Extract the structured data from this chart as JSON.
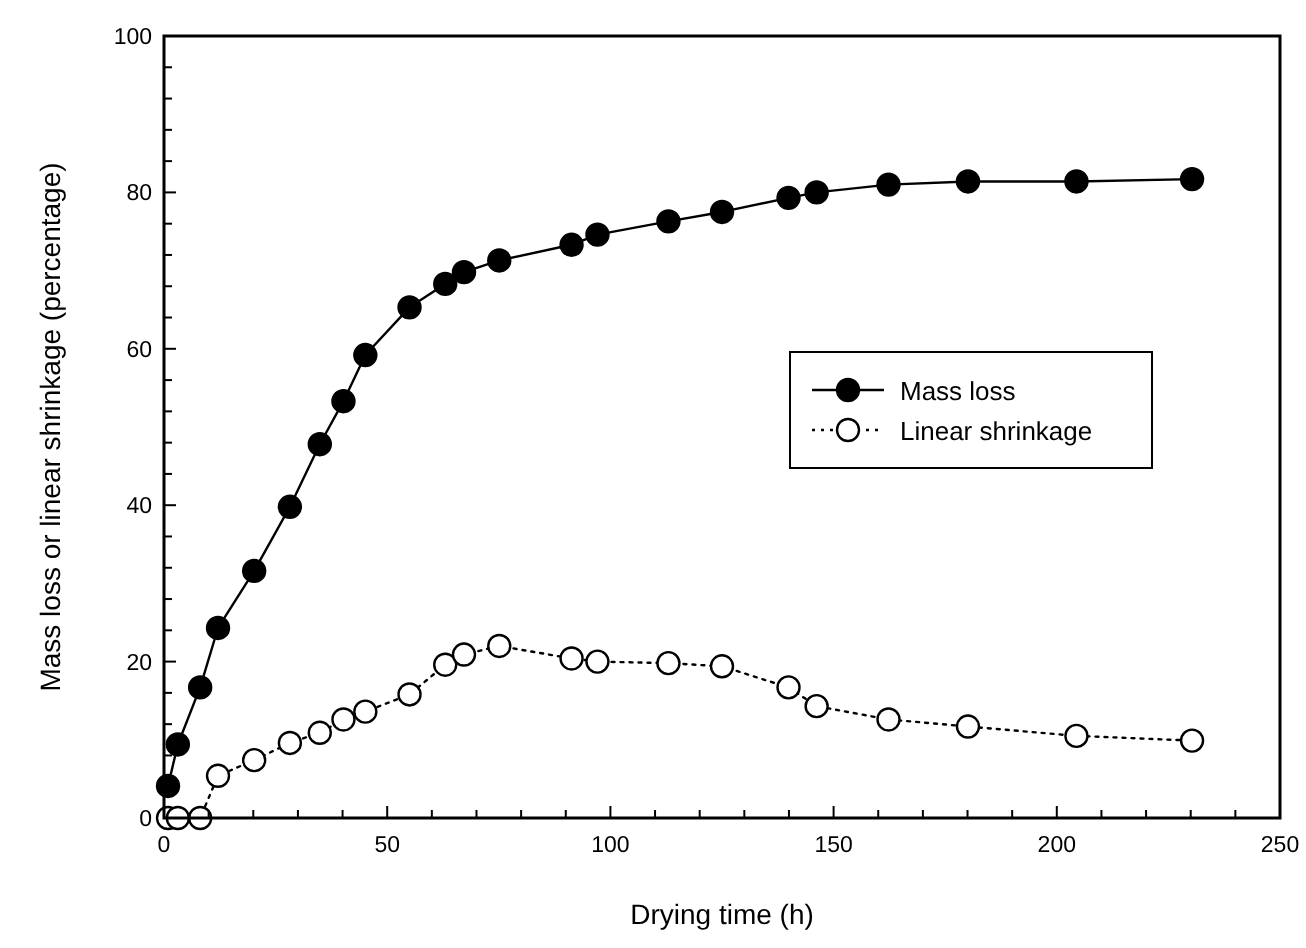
{
  "chart_data": {
    "type": "line",
    "xlabel": "Drying time (h)",
    "ylabel": "Mass loss or linear shrinkage (percentage)",
    "x": [
      0.9,
      3.1,
      8.1,
      12.1,
      20.2,
      28.2,
      34.9,
      40.2,
      45.1,
      55,
      63,
      67.2,
      75.1,
      91.3,
      97.1,
      113,
      125,
      139.9,
      146.2,
      162.3,
      180.1,
      204.4,
      230.3
    ],
    "series": [
      {
        "name": "Mass loss",
        "color": "#000000",
        "marker": "circle",
        "line_style": "solid",
        "values": [
          4.1,
          9.4,
          16.7,
          24.3,
          31.6,
          39.8,
          47.8,
          53.3,
          59.2,
          65.3,
          68.3,
          69.8,
          71.3,
          73.3,
          74.6,
          76.3,
          77.5,
          79.3,
          80,
          81,
          81.4,
          81.4,
          81.7
        ]
      },
      {
        "name": "Linear shrinkage",
        "color": "#000000",
        "marker": "circle",
        "line_style": "dotted",
        "values": [
          0,
          0,
          0,
          5.4,
          7.4,
          9.6,
          10.9,
          12.6,
          13.6,
          15.8,
          19.6,
          20.9,
          22,
          20.4,
          20,
          19.8,
          19.4,
          16.7,
          14.3,
          12.6,
          11.7,
          10.5,
          9.9
        ]
      }
    ],
    "xlim": [
      0,
      250
    ],
    "xticks": [
      0,
      {
        "value": 10,
        "label": null
      },
      {
        "value": 20,
        "label": null
      },
      {
        "value": 30,
        "label": null
      },
      {
        "value": 40,
        "label": null
      },
      50,
      {
        "value": 60,
        "label": null
      },
      {
        "value": 70,
        "label": null
      },
      {
        "value": 80,
        "label": null
      },
      {
        "value": 90,
        "label": null
      },
      100,
      {
        "value": 110,
        "label": null
      },
      {
        "value": 120,
        "label": null
      },
      {
        "value": 130,
        "label": null
      },
      {
        "value": 140,
        "label": null
      },
      150,
      {
        "value": 160,
        "label": null
      },
      {
        "value": 170,
        "label": null
      },
      {
        "value": 180,
        "label": null
      },
      {
        "value": 190,
        "label": null
      },
      200,
      {
        "value": 210,
        "label": null
      },
      {
        "value": 220,
        "label": null
      },
      {
        "value": 230,
        "label": null
      },
      {
        "value": 240,
        "label": null
      },
      250
    ],
    "ylim": [
      0,
      100
    ],
    "yticks": [
      0,
      {
        "value": 4,
        "label": null
      },
      {
        "value": 8,
        "label": null
      },
      {
        "value": 12,
        "label": null
      },
      {
        "value": 16,
        "label": null
      },
      20,
      {
        "value": 24,
        "label": null
      },
      {
        "value": 28,
        "label": null
      },
      {
        "value": 32,
        "label": null
      },
      {
        "value": 36,
        "label": null
      },
      40,
      {
        "value": 44,
        "label": null
      },
      {
        "value": 48,
        "label": null
      },
      {
        "value": 52,
        "label": null
      },
      {
        "value": 56,
        "label": null
      },
      60,
      {
        "value": 64,
        "label": null
      },
      {
        "value": 68,
        "label": null
      },
      {
        "value": 72,
        "label": null
      },
      {
        "value": 76,
        "label": null
      },
      80,
      {
        "value": 84,
        "label": null
      },
      {
        "value": 88,
        "label": null
      },
      {
        "value": 92,
        "label": null
      },
      {
        "value": 96,
        "label": null
      },
      100
    ],
    "legend": "right",
    "grid": false
  }
}
